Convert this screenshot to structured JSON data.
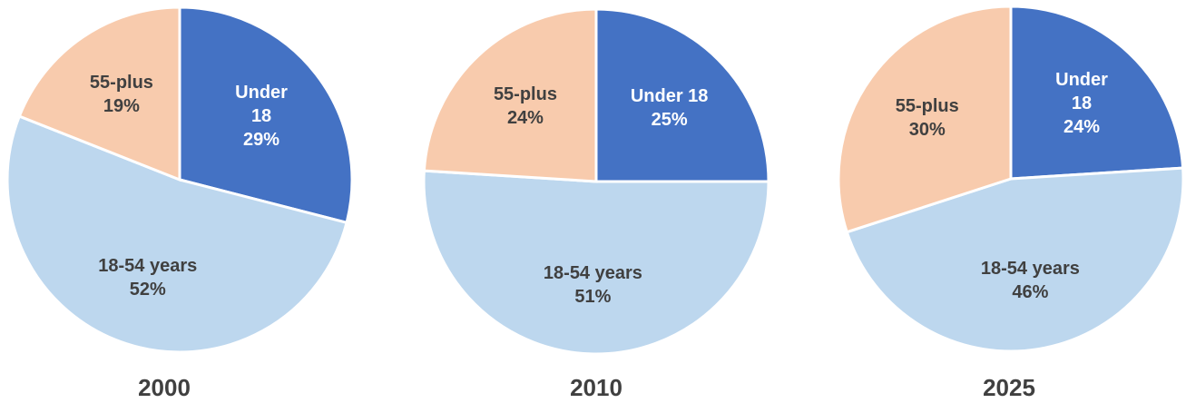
{
  "chart_data": [
    {
      "type": "pie",
      "title": "2000",
      "categories": [
        "Under 18",
        "18-54 years",
        "55-plus"
      ],
      "values": [
        29,
        52,
        19
      ],
      "value_labels": [
        "29%",
        "52%",
        "19%"
      ],
      "colors": [
        "#4472c4",
        "#bdd7ee",
        "#f8cbad"
      ]
    },
    {
      "type": "pie",
      "title": "2010",
      "categories": [
        "Under 18",
        "18-54 years",
        "55-plus"
      ],
      "values": [
        25,
        51,
        24
      ],
      "value_labels": [
        "25%",
        "51%",
        "24%"
      ],
      "colors": [
        "#4472c4",
        "#bdd7ee",
        "#f8cbad"
      ]
    },
    {
      "type": "pie",
      "title": "2025",
      "categories": [
        "Under 18",
        "18-54 years",
        "55-plus"
      ],
      "values": [
        24,
        46,
        30
      ],
      "value_labels": [
        "24%",
        "46%",
        "30%"
      ],
      "colors": [
        "#4472c4",
        "#bdd7ee",
        "#f8cbad"
      ]
    }
  ]
}
